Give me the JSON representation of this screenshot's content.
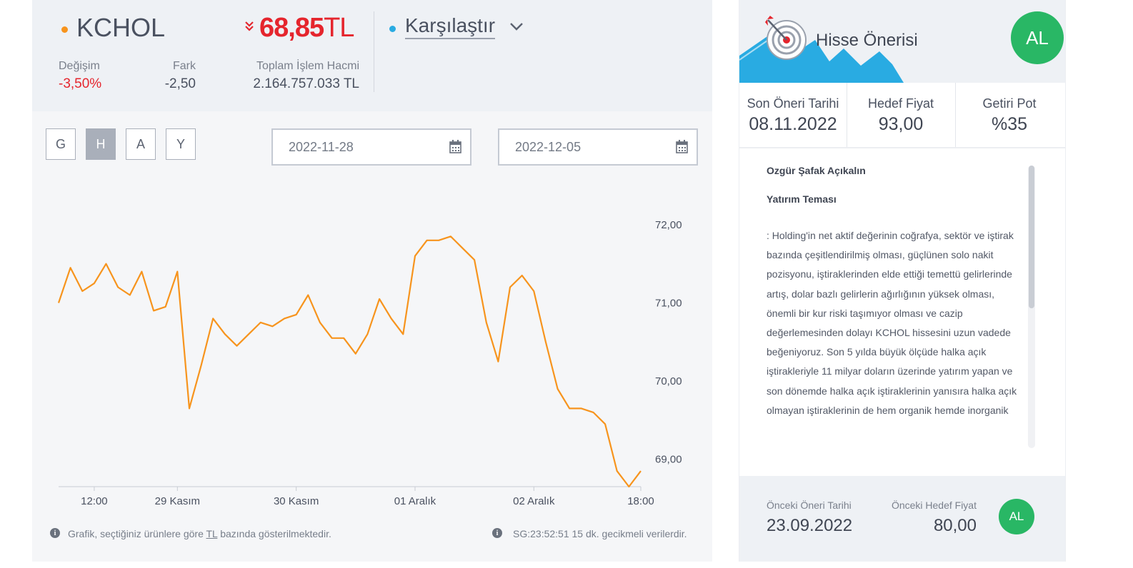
{
  "quote": {
    "ticker": "KCHOL",
    "price": "68,85",
    "currency": "TL",
    "change_label": "Değişim",
    "change_value": "-3,50%",
    "diff_label": "Fark",
    "diff_value": "-2,50",
    "volume_label": "Toplam İşlem Hacmi",
    "volume_value": "2.164.757.033 TL",
    "compare_label": "Karşılaştır"
  },
  "colors": {
    "ticker_dot": "#f7941d",
    "compare_dot": "#29abe2",
    "negative": "#e5252d",
    "line": "#f7941d",
    "avatar": "#29b765"
  },
  "icons": {
    "ticker_dot": "circle",
    "price_down": "double-chevron-down-icon",
    "compare_dropdown": "chevron-down-icon",
    "date_picker": "calendar-icon",
    "info": "info-icon",
    "recommendation": "target-arrow-icon"
  },
  "periods": {
    "buttons": [
      "G",
      "H",
      "A",
      "Y"
    ],
    "active": "H"
  },
  "date_range": {
    "start": "2022-11-28",
    "end": "2022-12-05"
  },
  "chart_data": {
    "type": "line",
    "x_tick_labels": [
      "12:00",
      "29 Kasım",
      "30 Kasım",
      "01 Aralık",
      "02 Aralık",
      "18:00"
    ],
    "y_tick_labels": [
      "72,00",
      "71,00",
      "70,00",
      "69,00"
    ],
    "y_ticks": [
      72,
      71,
      70,
      69
    ],
    "ylim": [
      68.65,
      72.3
    ],
    "xlim": [
      0,
      49
    ],
    "x_tick_positions": [
      3,
      10,
      20,
      30,
      40,
      49
    ],
    "series": [
      {
        "values": [
          71.0,
          71.45,
          71.15,
          71.25,
          71.5,
          71.2,
          71.1,
          71.4,
          70.9,
          70.95,
          71.4,
          69.65,
          70.2,
          70.8,
          70.6,
          70.45,
          70.6,
          70.75,
          70.7,
          70.8,
          70.85,
          71.1,
          70.75,
          70.55,
          70.55,
          70.35,
          70.6,
          71.05,
          70.8,
          70.6,
          71.6,
          71.8,
          71.8,
          71.85,
          71.7,
          71.55,
          70.75,
          70.25,
          71.2,
          71.35,
          71.15,
          70.5,
          69.9,
          69.65,
          69.65,
          69.6,
          69.45,
          68.85,
          68.65,
          68.85
        ]
      }
    ],
    "grid": false
  },
  "footer": {
    "note": "Grafik, seçtiğiniz ürünlere göre TL bazında gösterilmektedir.",
    "note_before": "Grafik, seçtiğiniz ürünlere göre ",
    "note_link": "TL",
    "note_after": " bazında gösterilmektedir.",
    "delay": "SG:23:52:51 15 dk. gecikmeli verilerdir."
  },
  "recommendation": {
    "title": "Hisse Önerisi",
    "action": "AL",
    "date_label": "Son Öneri Tarihi",
    "date_value": "08.11.2022",
    "target_label": "Hedef Fiyat",
    "target_value": "93,00",
    "return_label": "Getiri Pot",
    "return_value": "%35",
    "analyst": "Ozgür Şafak Açıkalın",
    "theme_label": "Yatırım Teması",
    "text": ": Holding'in net aktif değerinin coğrafya, sektör ve iştirak bazında çeşitlendirilmiş olması, güçlünen solo nakit pozisyonu, iştiraklerinden elde ettiği temettü gelirlerinde artış, dolar bazlı gelirlerin ağırlığının yüksek olması, önemli bir kur riski taşımıyor olması ve cazip değerlemesinden dolayı KCHOL hissesini uzun vadede beğeniyoruz. Son 5 yılda büyük ölçüde halka açık iştirakleriyle 11 milyar doların üzerinde yatırım yapan ve son dönemde halka açık iştiraklerinin yanısıra halka açık olmayan iştiraklerinin de hem organik hemde inorganik"
  },
  "previous": {
    "date_label": "Önceki Öneri Tarihi",
    "date_value": "23.09.2022",
    "target_label": "Önceki Hedef Fiyat",
    "target_value": "80,00",
    "action": "AL"
  }
}
